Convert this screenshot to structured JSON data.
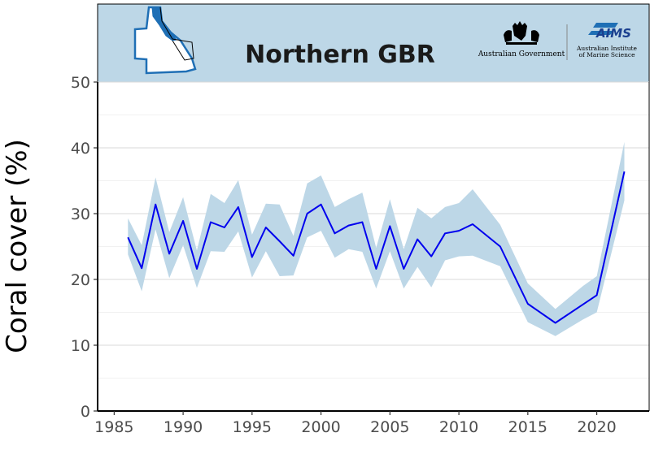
{
  "chart_data": {
    "type": "line",
    "title": "Northern GBR",
    "ylabel": "Coral cover (%)",
    "xlabel": "",
    "xlim": [
      1983.8,
      2023.8
    ],
    "ylim": [
      0,
      50
    ],
    "xticks": [
      1985,
      1990,
      1995,
      2000,
      2005,
      2010,
      2015,
      2020
    ],
    "yticks": [
      0,
      10,
      20,
      30,
      40,
      50
    ],
    "grid": true,
    "band_color": "#bdd7e7",
    "line_color": "#0000ee",
    "header_color": "#bdd7e7",
    "series": [
      {
        "x": [
          1986,
          1987,
          1988,
          1989,
          1990,
          1991,
          1992,
          1993,
          1994,
          1995,
          1996,
          1997,
          1998,
          1999,
          2000,
          2001,
          2002,
          2003,
          2004,
          2005,
          2006,
          2007,
          2008,
          2009,
          2010,
          2011,
          2013,
          2015,
          2017,
          2019,
          2020,
          2022
        ],
        "y": [
          26.4,
          21.7,
          31.4,
          23.9,
          28.9,
          21.6,
          28.7,
          27.9,
          31.0,
          23.4,
          27.9,
          25.8,
          23.6,
          30.0,
          31.4,
          27.0,
          28.2,
          28.7,
          21.6,
          28.1,
          21.6,
          26.1,
          23.5,
          27.0,
          27.4,
          28.4,
          25.0,
          16.3,
          13.4,
          16.2,
          17.6,
          36.4
        ],
        "lower": [
          23.8,
          18.2,
          27.6,
          20.2,
          25.2,
          18.7,
          24.3,
          24.2,
          27.3,
          20.3,
          24.3,
          20.5,
          20.6,
          26.4,
          27.4,
          23.3,
          24.6,
          24.2,
          18.6,
          24.3,
          18.6,
          21.9,
          18.8,
          22.9,
          23.5,
          23.6,
          22.0,
          13.5,
          11.4,
          13.9,
          15.0,
          32.0
        ],
        "upper": [
          29.3,
          25.2,
          35.5,
          27.2,
          32.5,
          24.4,
          33.0,
          31.6,
          35.1,
          26.8,
          31.5,
          31.4,
          26.6,
          34.6,
          35.8,
          31.0,
          32.2,
          33.2,
          24.8,
          32.2,
          24.6,
          30.9,
          29.3,
          31.0,
          31.6,
          33.7,
          28.3,
          19.4,
          15.5,
          19.0,
          20.5,
          40.9
        ]
      }
    ]
  },
  "header": {
    "title": "Northern GBR",
    "logos": [
      {
        "name": "australian-government",
        "text": "Australian Government"
      },
      {
        "name": "aims",
        "text_line1": "Australian Institute",
        "text_line2": "of Marine Science"
      }
    ]
  }
}
